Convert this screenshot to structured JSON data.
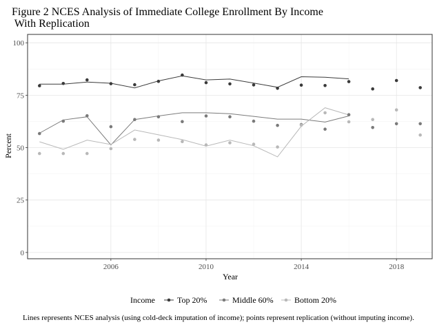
{
  "chart_data": {
    "type": "line",
    "title": "Figure 2 NCES Analysis of Immediate College Enrollment By Income\n With Replication",
    "xlabel": "Year",
    "ylabel": "Percent",
    "xlim": [
      2002.5,
      2019.5
    ],
    "ylim": [
      -3,
      104
    ],
    "x_ticks": [
      2006,
      2010,
      2014,
      2018
    ],
    "y_ticks": [
      0,
      25,
      50,
      75,
      100
    ],
    "grid": true,
    "legend": {
      "title": "Income",
      "position": "bottom",
      "entries": [
        "Top 20%",
        "Middle 60%",
        "Bottom 20%"
      ]
    },
    "series": [
      {
        "name": "Top 20%",
        "color": "#3a3a3a",
        "line": {
          "x": [
            2003,
            2004,
            2005,
            2006,
            2007,
            2008,
            2009,
            2010,
            2011,
            2012,
            2013,
            2014,
            2015,
            2016
          ],
          "y": [
            80.3,
            80.3,
            81.3,
            80.7,
            78.5,
            81.8,
            84.2,
            82.3,
            82.7,
            80.8,
            78.8,
            83.8,
            83.6,
            82.8
          ]
        },
        "points": {
          "x": [
            2003,
            2004,
            2005,
            2006,
            2007,
            2008,
            2009,
            2010,
            2011,
            2012,
            2013,
            2014,
            2015,
            2016,
            2017,
            2018,
            2019
          ],
          "y": [
            79.5,
            80.6,
            82.3,
            80.5,
            80.0,
            81.6,
            84.6,
            81.0,
            80.4,
            79.9,
            78.3,
            79.8,
            79.6,
            81.5,
            78.0,
            82.0,
            78.6
          ]
        }
      },
      {
        "name": "Middle 60%",
        "color": "#7a7a7a",
        "line": {
          "x": [
            2003,
            2004,
            2005,
            2006,
            2007,
            2008,
            2009,
            2010,
            2011,
            2012,
            2013,
            2014,
            2015,
            2016
          ],
          "y": [
            56.9,
            63.2,
            64.7,
            51.3,
            63.4,
            65.1,
            66.6,
            66.6,
            66.2,
            64.9,
            63.6,
            63.6,
            62.2,
            65.1
          ]
        },
        "points": {
          "x": [
            2003,
            2004,
            2005,
            2006,
            2007,
            2008,
            2009,
            2010,
            2011,
            2012,
            2013,
            2014,
            2015,
            2016,
            2017,
            2018,
            2019
          ],
          "y": [
            56.7,
            62.6,
            65.2,
            60.0,
            63.4,
            64.7,
            62.4,
            65.1,
            64.7,
            62.6,
            60.6,
            61.0,
            58.8,
            65.7,
            59.6,
            61.4,
            61.4
          ]
        }
      },
      {
        "name": "Bottom 20%",
        "color": "#b8b8b8",
        "line": {
          "x": [
            2003,
            2004,
            2005,
            2006,
            2007,
            2008,
            2009,
            2010,
            2011,
            2012,
            2013,
            2014,
            2015,
            2016
          ],
          "y": [
            52.8,
            49.2,
            53.6,
            51.5,
            58.4,
            56.1,
            53.8,
            50.7,
            53.6,
            50.9,
            45.6,
            60.2,
            69.0,
            65.6
          ]
        },
        "points": {
          "x": [
            2003,
            2004,
            2005,
            2006,
            2007,
            2008,
            2009,
            2010,
            2011,
            2012,
            2013,
            2014,
            2015,
            2016,
            2017,
            2018,
            2019
          ],
          "y": [
            47.2,
            47.2,
            47.2,
            49.5,
            53.9,
            53.6,
            52.9,
            51.3,
            52.3,
            51.6,
            50.3,
            60.7,
            66.6,
            62.3,
            63.4,
            68.0,
            56.0
          ]
        }
      }
    ]
  },
  "caption": "Lines represents NCES analysis (using cold-deck imputation of income); points represent replication (without imputing income)."
}
